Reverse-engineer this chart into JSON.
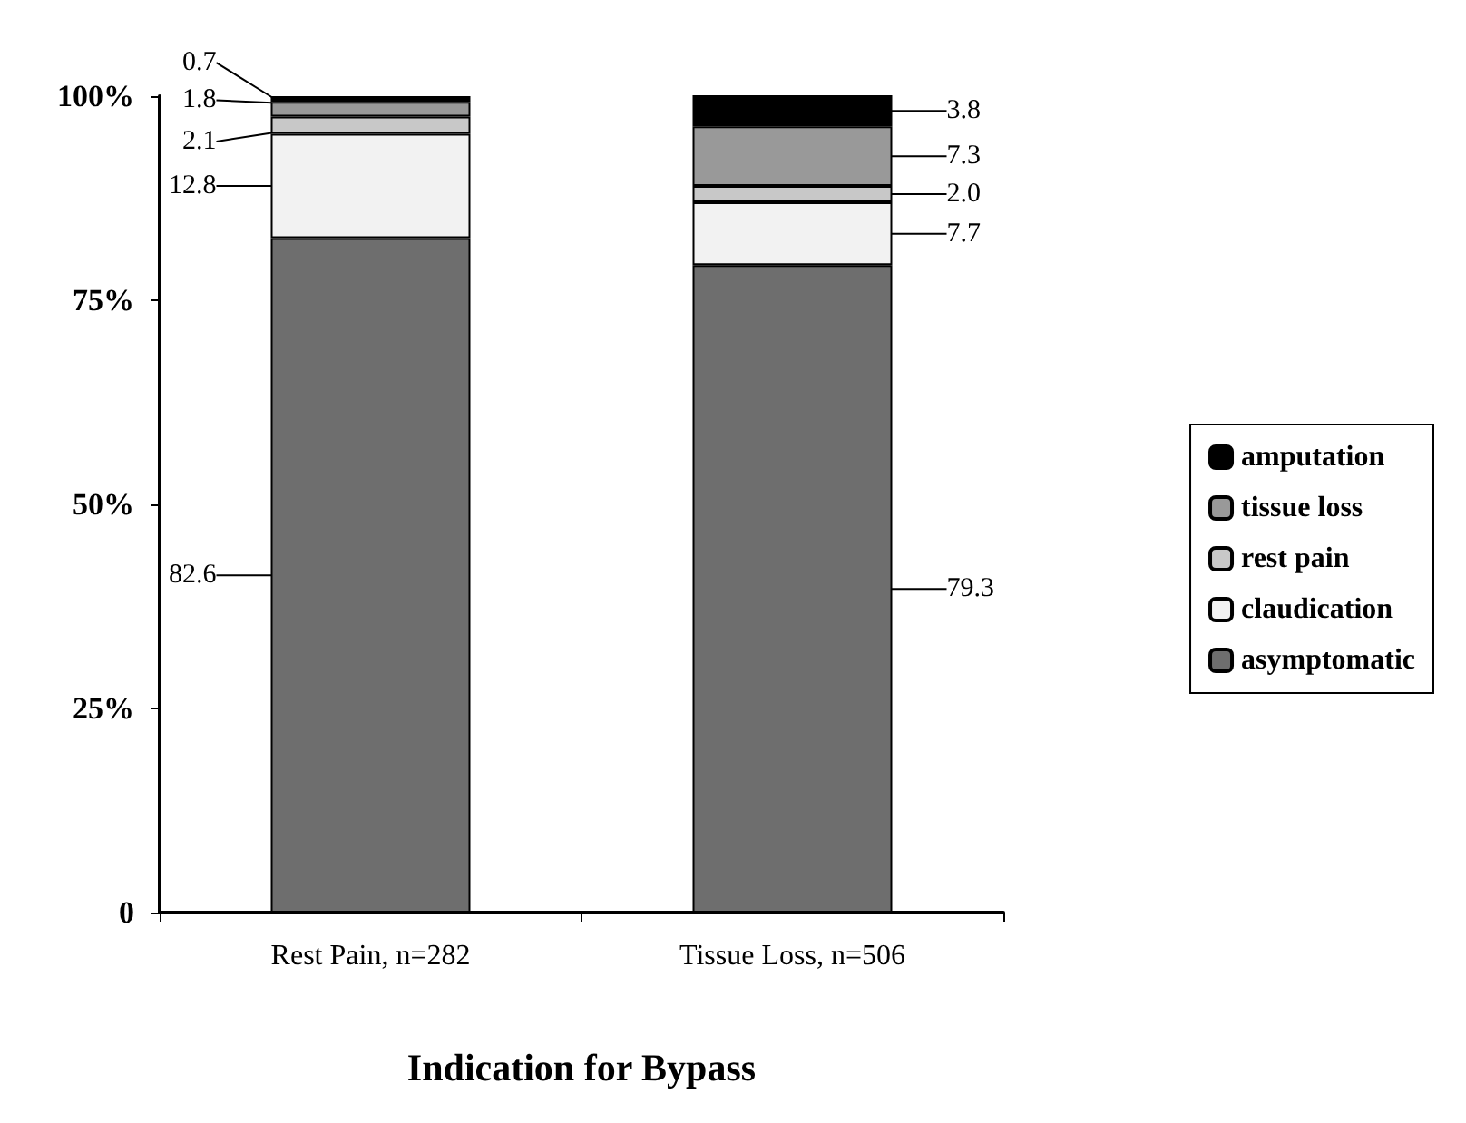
{
  "chart_data": {
    "type": "bar",
    "stacked": true,
    "xlabel": "Indication for Bypass",
    "categories": [
      "Rest Pain, n=282",
      "Tissue Loss, n=506"
    ],
    "series": [
      {
        "name": "asymptomatic",
        "color": "#6e6e6e",
        "values": [
          82.6,
          79.3
        ],
        "value_labels": [
          "82.6",
          "79.3"
        ]
      },
      {
        "name": "claudication",
        "color": "#f2f2f2",
        "values": [
          12.8,
          7.7
        ],
        "value_labels": [
          "12.8",
          "7.7"
        ]
      },
      {
        "name": "rest pain",
        "color": "#c8c8c8",
        "values": [
          2.1,
          2.0
        ],
        "value_labels": [
          "2.1",
          "2.0"
        ]
      },
      {
        "name": "tissue loss",
        "color": "#999999",
        "values": [
          1.8,
          7.3
        ],
        "value_labels": [
          "1.8",
          "7.3"
        ]
      },
      {
        "name": "amputation",
        "color": "#000000",
        "values": [
          0.7,
          3.8
        ],
        "value_labels": [
          "0.7",
          "3.8"
        ]
      }
    ],
    "ylim": [
      0,
      100
    ],
    "yticks": [
      {
        "value": 0,
        "label": "0"
      },
      {
        "value": 25,
        "label": "25%"
      },
      {
        "value": 50,
        "label": "50%"
      },
      {
        "value": 75,
        "label": "75%"
      },
      {
        "value": 100,
        "label": "100%"
      }
    ],
    "grid": false,
    "legend": "right"
  }
}
